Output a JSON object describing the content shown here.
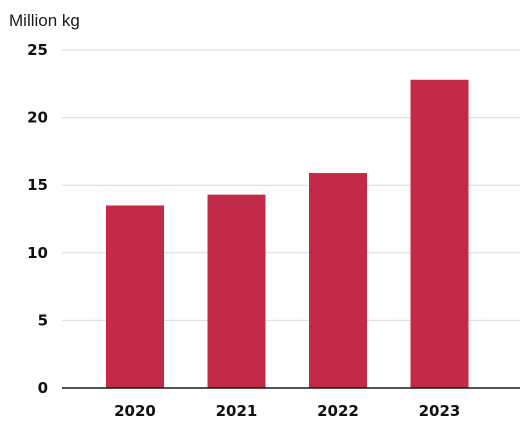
{
  "chart_data": {
    "type": "bar",
    "title": "",
    "ylabel": "Million kg",
    "xlabel": "",
    "categories": [
      "2020",
      "2021",
      "2022",
      "2023"
    ],
    "values": [
      13.5,
      14.3,
      15.9,
      22.8
    ],
    "ylim": [
      0,
      25
    ],
    "yticks": [
      "0",
      "5",
      "10",
      "15",
      "20",
      "25"
    ],
    "grid": true,
    "legend": "none",
    "bar_color": "#c32a48"
  }
}
